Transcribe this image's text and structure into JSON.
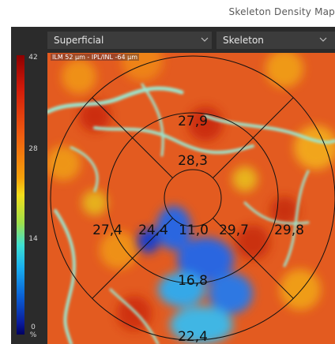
{
  "header": {
    "title": "Skeleton Density Map"
  },
  "dropdowns": {
    "layer": {
      "value": "Superficial"
    },
    "type": {
      "value": "Skeleton"
    }
  },
  "scale": {
    "ticks": [
      "42",
      "28",
      "14",
      "0"
    ],
    "unit": "%"
  },
  "overlay": {
    "segmentation": "ILM 52 µm - IPL/INL -64 µm"
  },
  "sectors": {
    "superior_outer": "27,9",
    "superior_inner": "28,3",
    "temporal_outer": "27,4",
    "temporal_inner": "24,4",
    "center": "11,0",
    "nasal_inner": "29,7",
    "nasal_outer": "29,8",
    "inferior_inner": "16,8",
    "inferior_outer": "22,4"
  },
  "colors": {
    "panel": "#2b2b2b",
    "dropdown": "#3c3c3c",
    "map_base": "#e45a22",
    "vessel": "#8fe2c8",
    "low_density": "#1f54d8",
    "grid": "#111111"
  }
}
